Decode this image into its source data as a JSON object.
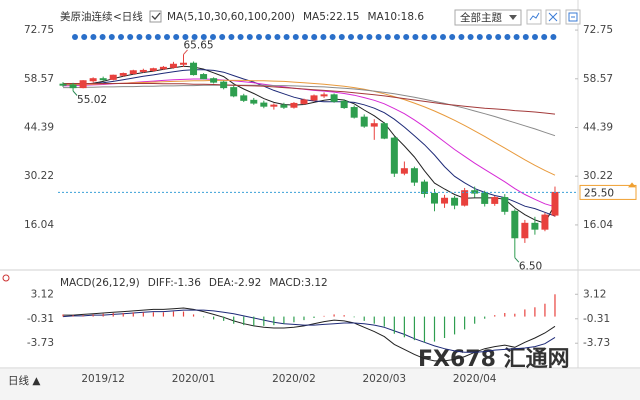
{
  "toolbar": {
    "theme": "全部主题"
  },
  "chart_data": [
    {
      "type": "candlestick",
      "title": "美原油连续",
      "subtitle": "<日线",
      "indicator": "MA(5,10,30,60,100,200)",
      "categories": [
        null,
        null,
        null,
        null,
        "2019/12",
        null,
        null,
        null,
        null,
        null,
        null,
        null,
        null,
        "2020/01",
        null,
        null,
        null,
        null,
        null,
        null,
        null,
        null,
        null,
        "2020/02",
        null,
        null,
        null,
        null,
        null,
        null,
        null,
        null,
        "2020/03",
        null,
        null,
        null,
        null,
        null,
        null,
        null,
        null,
        "2020/04",
        null,
        null,
        null,
        null,
        null,
        null,
        null,
        null
      ],
      "open": [
        57.0,
        56.8,
        56.0,
        58.0,
        58.6,
        58.4,
        59.6,
        60.1,
        60.9,
        61.0,
        61.5,
        61.9,
        62.8,
        63.1,
        59.8,
        58.6,
        57.6,
        56.0,
        53.6,
        52.3,
        51.5,
        50.6,
        50.9,
        50.3,
        51.4,
        52.4,
        53.6,
        53.9,
        52.0,
        50.2,
        47.4,
        44.8,
        45.5,
        41.3,
        31.1,
        32.4,
        28.5,
        25.2,
        22.4,
        23.8,
        21.8,
        26.0,
        25.3,
        22.3,
        24.0,
        20.0,
        12.3,
        16.5,
        14.8,
        18.9
      ],
      "high": [
        57.6,
        57.4,
        58.2,
        59.0,
        59.2,
        59.8,
        60.4,
        61.2,
        61.5,
        61.8,
        62.3,
        63.5,
        65.65,
        63.6,
        60.2,
        59.0,
        58.0,
        56.6,
        54.2,
        53.0,
        52.2,
        51.4,
        51.6,
        51.8,
        52.8,
        54.0,
        54.6,
        54.3,
        52.6,
        50.8,
        48.2,
        46.8,
        46.0,
        41.8,
        34.5,
        33.0,
        29.2,
        26.5,
        24.8,
        24.5,
        26.8,
        27.2,
        26.0,
        24.5,
        25.0,
        20.6,
        17.5,
        18.4,
        19.6,
        27.2
      ],
      "low": [
        56.2,
        55.02,
        55.8,
        57.5,
        58.0,
        58.1,
        59.2,
        59.8,
        60.3,
        60.6,
        61.1,
        61.5,
        62.0,
        59.5,
        58.4,
        57.2,
        55.5,
        53.2,
        51.8,
        51.0,
        50.0,
        49.6,
        49.8,
        49.9,
        51.0,
        52.0,
        53.0,
        51.6,
        49.8,
        47.0,
        44.3,
        40.8,
        41.0,
        30.0,
        30.5,
        27.4,
        24.0,
        20.0,
        21.0,
        20.6,
        21.4,
        24.0,
        21.4,
        21.6,
        19.0,
        6.5,
        10.8,
        13.2,
        14.2,
        18.4
      ],
      "close": [
        56.8,
        56.0,
        58.0,
        58.6,
        58.4,
        59.6,
        60.1,
        60.9,
        61.0,
        61.5,
        61.9,
        62.8,
        63.1,
        59.8,
        58.6,
        57.6,
        56.0,
        53.6,
        52.3,
        51.5,
        50.6,
        50.9,
        50.3,
        51.4,
        52.4,
        53.6,
        53.9,
        52.0,
        50.2,
        47.4,
        44.8,
        45.5,
        41.3,
        31.1,
        32.4,
        28.5,
        25.2,
        22.4,
        23.8,
        21.8,
        26.0,
        25.3,
        22.3,
        24.0,
        20.0,
        12.3,
        16.5,
        14.8,
        18.9,
        25.5
      ],
      "up_color": "#e8413d",
      "down_color": "#2e9e4f",
      "series": [
        {
          "name": "MA5:22.15",
          "color": "#222222",
          "values": [
            57.0,
            56.8,
            57.0,
            57.3,
            57.8,
            58.6,
            59.3,
            59.9,
            60.4,
            60.8,
            61.3,
            61.8,
            62.2,
            62.0,
            61.4,
            60.3,
            59.2,
            57.1,
            55.6,
            54.3,
            52.8,
            51.7,
            51.1,
            50.9,
            51.1,
            51.7,
            52.3,
            52.7,
            52.4,
            51.3,
            49.5,
            47.8,
            45.7,
            42.0,
            39.0,
            35.8,
            31.8,
            28.2,
            26.5,
            24.9,
            23.8,
            23.9,
            23.9,
            23.9,
            23.5,
            21.0,
            19.0,
            17.5,
            16.5,
            22.15
          ]
        },
        {
          "name": "MA10:18.6",
          "color": "#1e2a78",
          "values": [
            57.0,
            56.9,
            57.0,
            57.1,
            57.4,
            57.8,
            58.3,
            58.8,
            59.3,
            59.7,
            60.2,
            60.6,
            61.0,
            61.2,
            61.2,
            61.0,
            60.5,
            59.5,
            58.5,
            57.6,
            56.4,
            55.2,
            54.2,
            53.2,
            52.5,
            52.1,
            51.9,
            51.9,
            51.9,
            51.7,
            51.0,
            50.0,
            48.7,
            46.8,
            44.5,
            42.0,
            39.4,
            36.4,
            33.0,
            30.2,
            28.3,
            26.6,
            25.5,
            24.6,
            24.0,
            22.8,
            21.5,
            20.8,
            19.7,
            18.6
          ]
        },
        {
          "color": "#d62ad6",
          "values": [
            56.5,
            56.6,
            56.7,
            56.8,
            56.9,
            57.1,
            57.3,
            57.5,
            57.7,
            57.9,
            58.1,
            58.3,
            58.4,
            58.5,
            58.5,
            58.4,
            58.2,
            58.0,
            57.7,
            57.4,
            57.0,
            56.6,
            56.2,
            55.8,
            55.5,
            55.2,
            55.0,
            54.7,
            54.3,
            53.8,
            53.1,
            52.3,
            51.3,
            49.9,
            48.4,
            46.6,
            44.6,
            42.4,
            40.2,
            38.0,
            36.0,
            34.0,
            32.2,
            30.4,
            28.6,
            26.6,
            24.9,
            23.5,
            22.2,
            21.3
          ]
        },
        {
          "color": "#e89a3c",
          "values": [
            56.8,
            56.9,
            57.0,
            57.0,
            57.1,
            57.2,
            57.3,
            57.4,
            57.5,
            57.6,
            57.7,
            57.8,
            57.9,
            58.0,
            58.0,
            58.1,
            58.1,
            58.1,
            58.1,
            58.0,
            58.0,
            57.9,
            57.8,
            57.6,
            57.4,
            57.2,
            57.0,
            56.7,
            56.4,
            56.0,
            55.5,
            54.9,
            54.2,
            53.4,
            52.5,
            51.5,
            50.4,
            49.2,
            47.9,
            46.5,
            45.0,
            43.4,
            41.8,
            40.1,
            38.4,
            36.7,
            35.0,
            33.4,
            31.9,
            30.5
          ]
        },
        {
          "color": "#8a8a8a",
          "values": [
            56.0,
            56.0,
            56.1,
            56.1,
            56.2,
            56.2,
            56.3,
            56.3,
            56.4,
            56.4,
            56.5,
            56.5,
            56.6,
            56.6,
            56.7,
            56.7,
            56.7,
            56.7,
            56.7,
            56.7,
            56.7,
            56.6,
            56.6,
            56.5,
            56.4,
            56.3,
            56.2,
            56.0,
            55.8,
            55.6,
            55.3,
            55.0,
            54.6,
            54.2,
            53.7,
            53.2,
            52.6,
            52.0,
            51.4,
            50.7,
            50.0,
            49.2,
            48.4,
            47.6,
            46.7,
            45.8,
            44.9,
            44.0,
            43.0,
            42.0
          ]
        },
        {
          "color": "#a33a3a",
          "values": [
            57.2,
            57.2,
            57.2,
            57.2,
            57.2,
            57.2,
            57.2,
            57.2,
            57.2,
            57.2,
            57.1,
            57.1,
            57.1,
            57.0,
            57.0,
            56.9,
            56.8,
            56.7,
            56.6,
            56.5,
            56.4,
            56.2,
            56.0,
            55.8,
            55.6,
            55.4,
            55.2,
            55.0,
            54.8,
            54.5,
            54.2,
            53.9,
            53.6,
            53.2,
            52.8,
            52.4,
            52.0,
            51.6,
            51.2,
            50.9,
            50.6,
            50.3,
            50.0,
            49.8,
            49.6,
            49.3,
            49.1,
            48.9,
            48.6,
            48.3
          ]
        }
      ],
      "annotations": [
        {
          "field": "high",
          "value": 65.65,
          "label": "65.65",
          "color": "#d9534f"
        },
        {
          "field": "low",
          "value": 55.02,
          "label": "55.02",
          "color": "#2e8b57"
        },
        {
          "field": "low",
          "value": 6.5,
          "label": "6.50",
          "color": "#2e8b57"
        }
      ],
      "last": {
        "value": 25.5,
        "label": "25.50",
        "color": "#f0a030"
      },
      "ylim": [
        3.5,
        75.1
      ],
      "yticks": [
        72.75,
        58.57,
        44.39,
        30.22,
        16.04
      ]
    },
    {
      "type": "macd",
      "title": "MACD(26,12,9)",
      "series": [
        {
          "name": "DIFF:-1.36",
          "color": "#222222",
          "values": [
            0.2,
            0.2,
            0.3,
            0.4,
            0.5,
            0.6,
            0.7,
            0.8,
            0.9,
            1.0,
            1.0,
            1.1,
            1.2,
            1.0,
            0.7,
            0.3,
            -0.1,
            -0.6,
            -1.0,
            -1.3,
            -1.5,
            -1.6,
            -1.6,
            -1.5,
            -1.3,
            -1.0,
            -0.7,
            -0.5,
            -0.6,
            -0.9,
            -1.5,
            -2.1,
            -2.8,
            -3.9,
            -4.6,
            -5.3,
            -5.9,
            -6.2,
            -6.2,
            -6.0,
            -5.6,
            -5.0,
            -4.5,
            -4.2,
            -4.0,
            -4.3,
            -3.6,
            -3.0,
            -2.3,
            -1.36
          ]
        },
        {
          "name": "DEA:-2.92",
          "color": "#1e2a78",
          "values": [
            0.0,
            0.1,
            0.1,
            0.2,
            0.2,
            0.3,
            0.4,
            0.5,
            0.6,
            0.7,
            0.7,
            0.8,
            0.9,
            0.9,
            0.9,
            0.8,
            0.6,
            0.4,
            0.1,
            -0.2,
            -0.5,
            -0.8,
            -1.0,
            -1.1,
            -1.2,
            -1.2,
            -1.1,
            -1.0,
            -0.9,
            -0.9,
            -1.0,
            -1.2,
            -1.5,
            -2.0,
            -2.5,
            -3.1,
            -3.6,
            -4.1,
            -4.5,
            -4.8,
            -5.0,
            -5.0,
            -4.9,
            -4.7,
            -4.6,
            -4.5,
            -4.4,
            -4.2,
            -3.8,
            -2.92
          ]
        },
        {
          "name": "MACD:3.12",
          "type": "histogram",
          "color": "#c832c8",
          "up_color": "#e8413d",
          "down_color": "#2e9e4f",
          "values": [
            0.3,
            0.2,
            0.2,
            0.3,
            0.4,
            0.5,
            0.5,
            0.6,
            0.6,
            0.6,
            0.6,
            0.7,
            0.7,
            0.3,
            -0.1,
            -0.4,
            -0.6,
            -1.0,
            -1.2,
            -1.3,
            -1.3,
            -1.2,
            -1.0,
            -0.8,
            -0.5,
            -0.2,
            0.1,
            0.3,
            0.2,
            -0.1,
            -0.6,
            -1.0,
            -1.4,
            -2.4,
            -2.9,
            -3.3,
            -3.6,
            -3.5,
            -3.0,
            -2.5,
            -1.8,
            -1.0,
            -0.3,
            0.2,
            0.5,
            0.4,
            1.0,
            1.3,
            1.8,
            3.12
          ]
        }
      ],
      "ylim": [
        -7.2,
        4.7
      ],
      "yticks": [
        3.12,
        -0.31,
        -3.73
      ]
    }
  ],
  "footer": {
    "label": "日线 ▲",
    "watermark": "FX678 汇通网"
  }
}
